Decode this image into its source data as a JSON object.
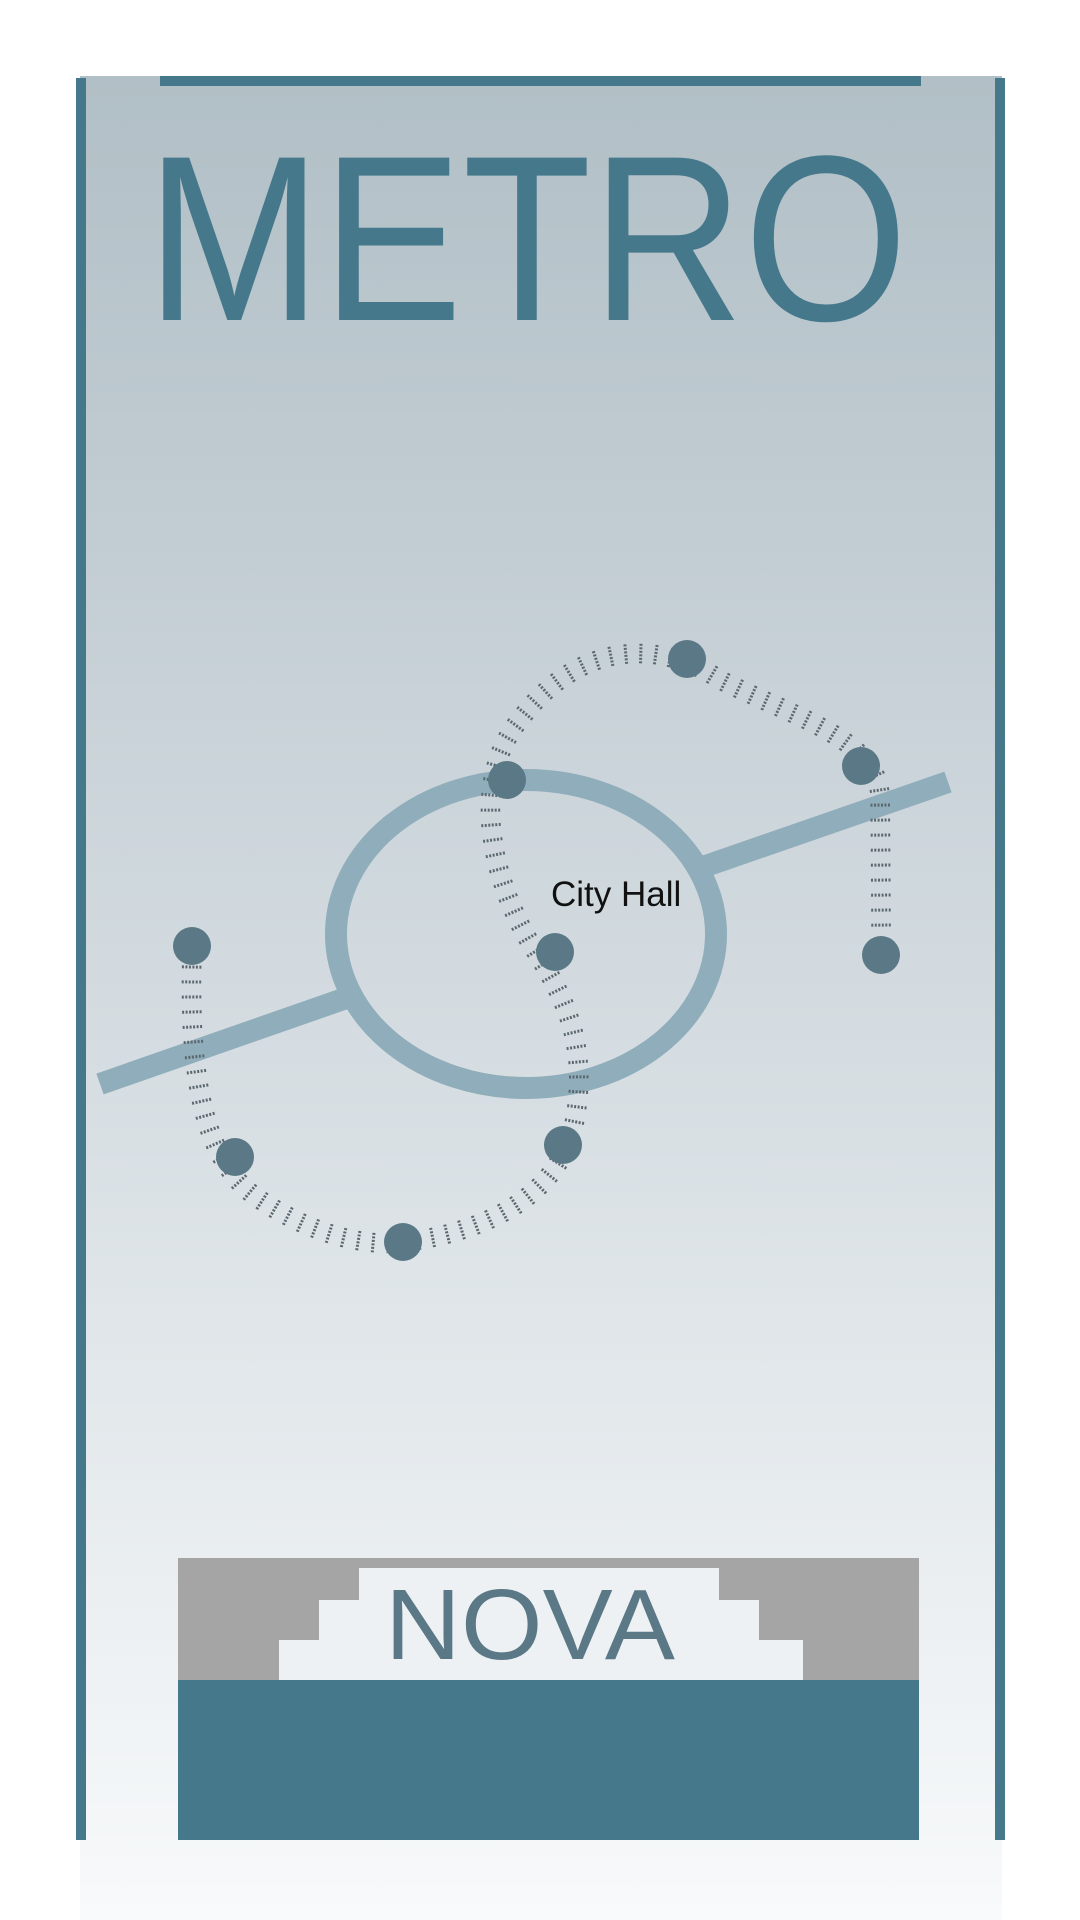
{
  "poster": {
    "title": "METRO",
    "brand": "NOVA",
    "station_label": "City Hall"
  },
  "colors": {
    "frame": "#46788C",
    "background_top": "#B1BFC6",
    "background_bottom": "#F8FAFB",
    "loop_line": "#8FADBA",
    "station": "#5A7886",
    "track_ties": "#5C6870",
    "footer_gray": "#A5A5A5",
    "footer_panel": "#46788C"
  }
}
